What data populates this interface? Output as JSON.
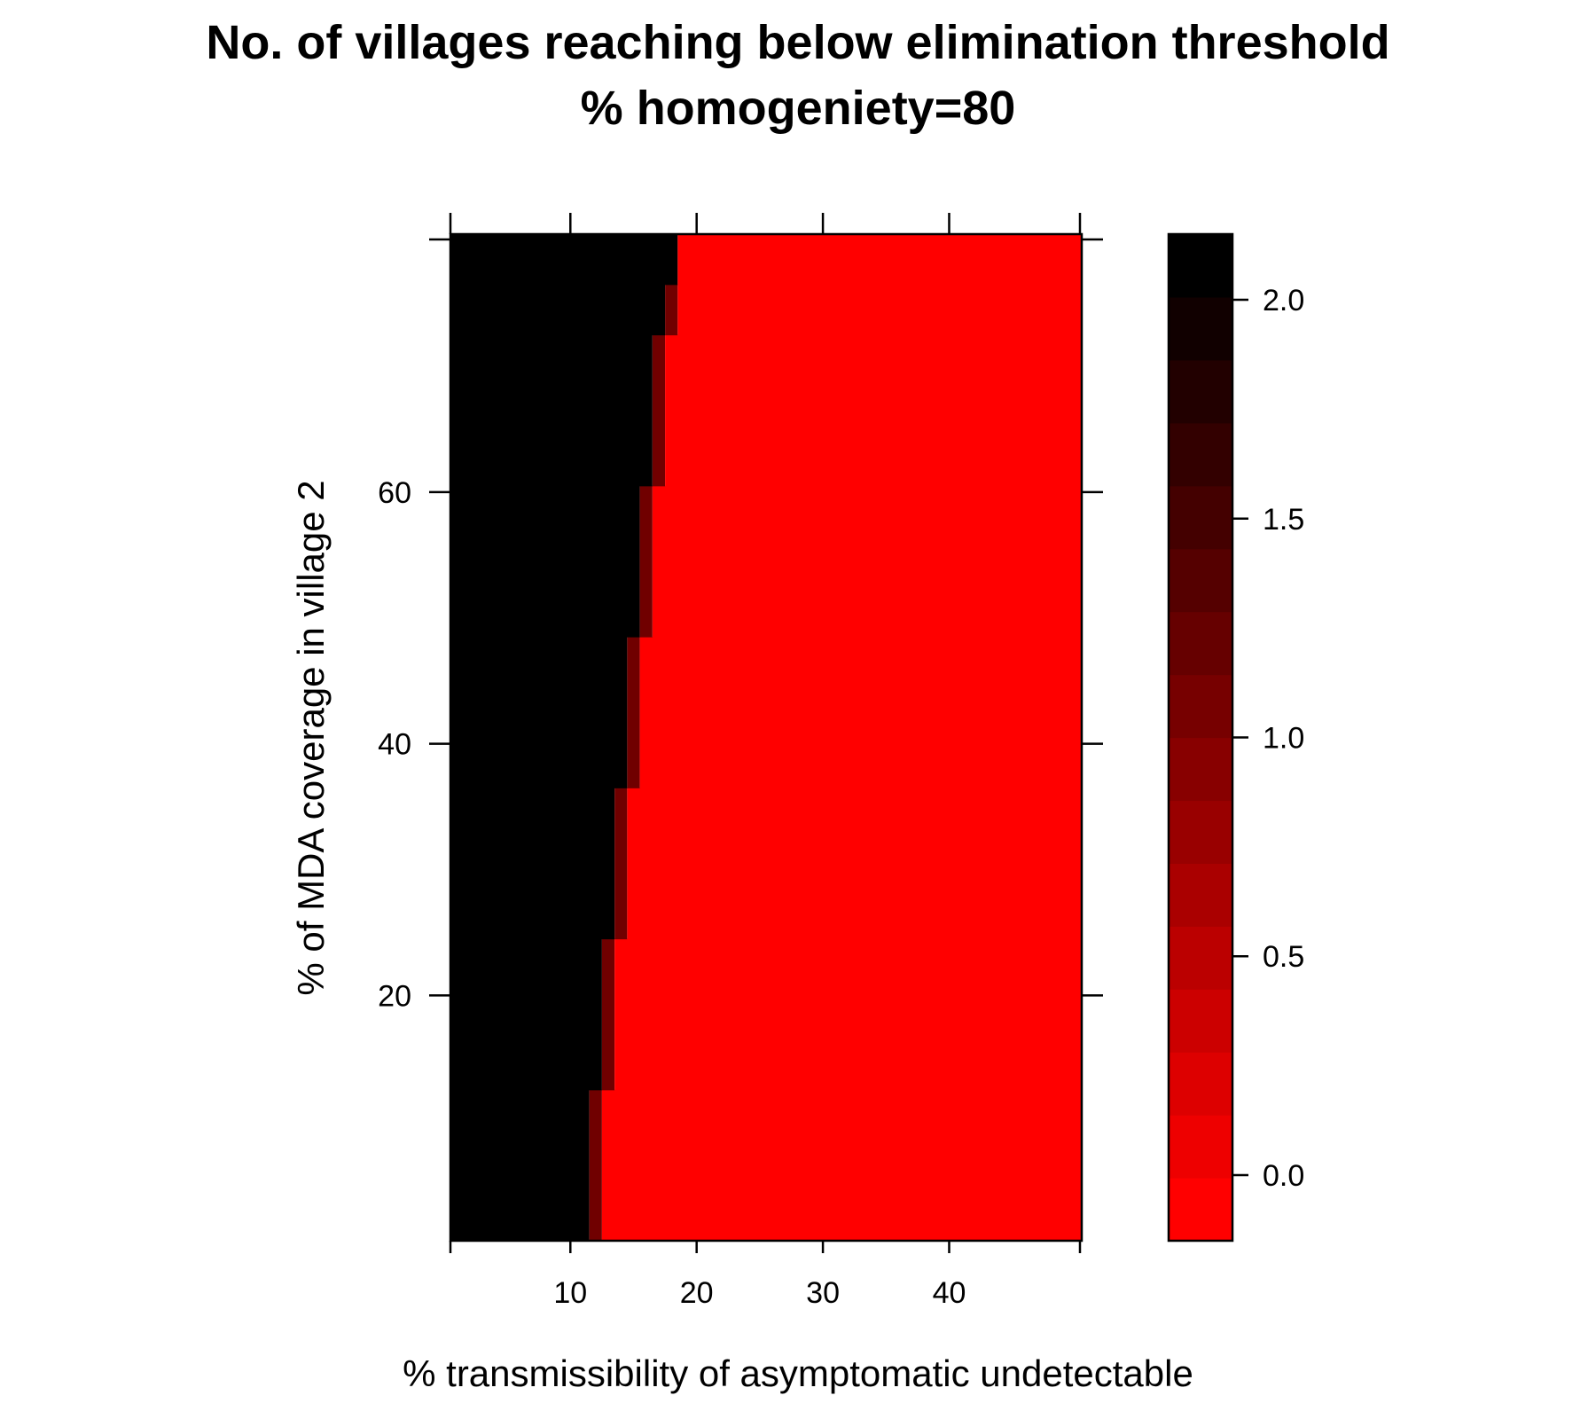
{
  "chart_data": {
    "type": "heatmap",
    "title": "No. of villages reaching below elimination threshold",
    "subtitle": "% homogeniety=80",
    "xlabel": "% transmissibility of asymptomatic undetectable",
    "ylabel": "% of MDA coverage in village 2",
    "xlim": [
      0.5,
      50.5
    ],
    "ylim": [
      0.5,
      80.5
    ],
    "x_ticks": [
      10,
      20,
      30,
      40
    ],
    "y_ticks": [
      20,
      40,
      60
    ],
    "colorbar": {
      "range": [
        -0.15,
        2.15
      ],
      "ticks": [
        0.0,
        0.5,
        1.0,
        1.5,
        2.0
      ],
      "tick_labels": [
        "0.0",
        "0.5",
        "1.0",
        "1.5",
        "2.0"
      ],
      "levels": 16,
      "low_color": "#ff0000",
      "high_color": "#000000"
    },
    "value_map": {
      "0": "#ff0000",
      "1": "#700000",
      "2": "#000000"
    },
    "boundary_rows": [
      {
        "y_range": [
          1,
          12
        ],
        "value_2_max_x": 11,
        "value_1_x": 12
      },
      {
        "y_range": [
          13,
          24
        ],
        "value_2_max_x": 12,
        "value_1_x": 13
      },
      {
        "y_range": [
          25,
          36
        ],
        "value_2_max_x": 13,
        "value_1_x": 14
      },
      {
        "y_range": [
          37,
          48
        ],
        "value_2_max_x": 14,
        "value_1_x": 15
      },
      {
        "y_range": [
          49,
          60
        ],
        "value_2_max_x": 15,
        "value_1_x": 16
      },
      {
        "y_range": [
          61,
          72
        ],
        "value_2_max_x": 16,
        "value_1_x": 17
      },
      {
        "y_range": [
          73,
          76
        ],
        "value_2_max_x": 17,
        "value_1_x": 18
      },
      {
        "y_range": [
          77,
          80
        ],
        "value_2_max_x": 18,
        "value_1_x": null
      }
    ],
    "grid": false,
    "legend": "right"
  }
}
